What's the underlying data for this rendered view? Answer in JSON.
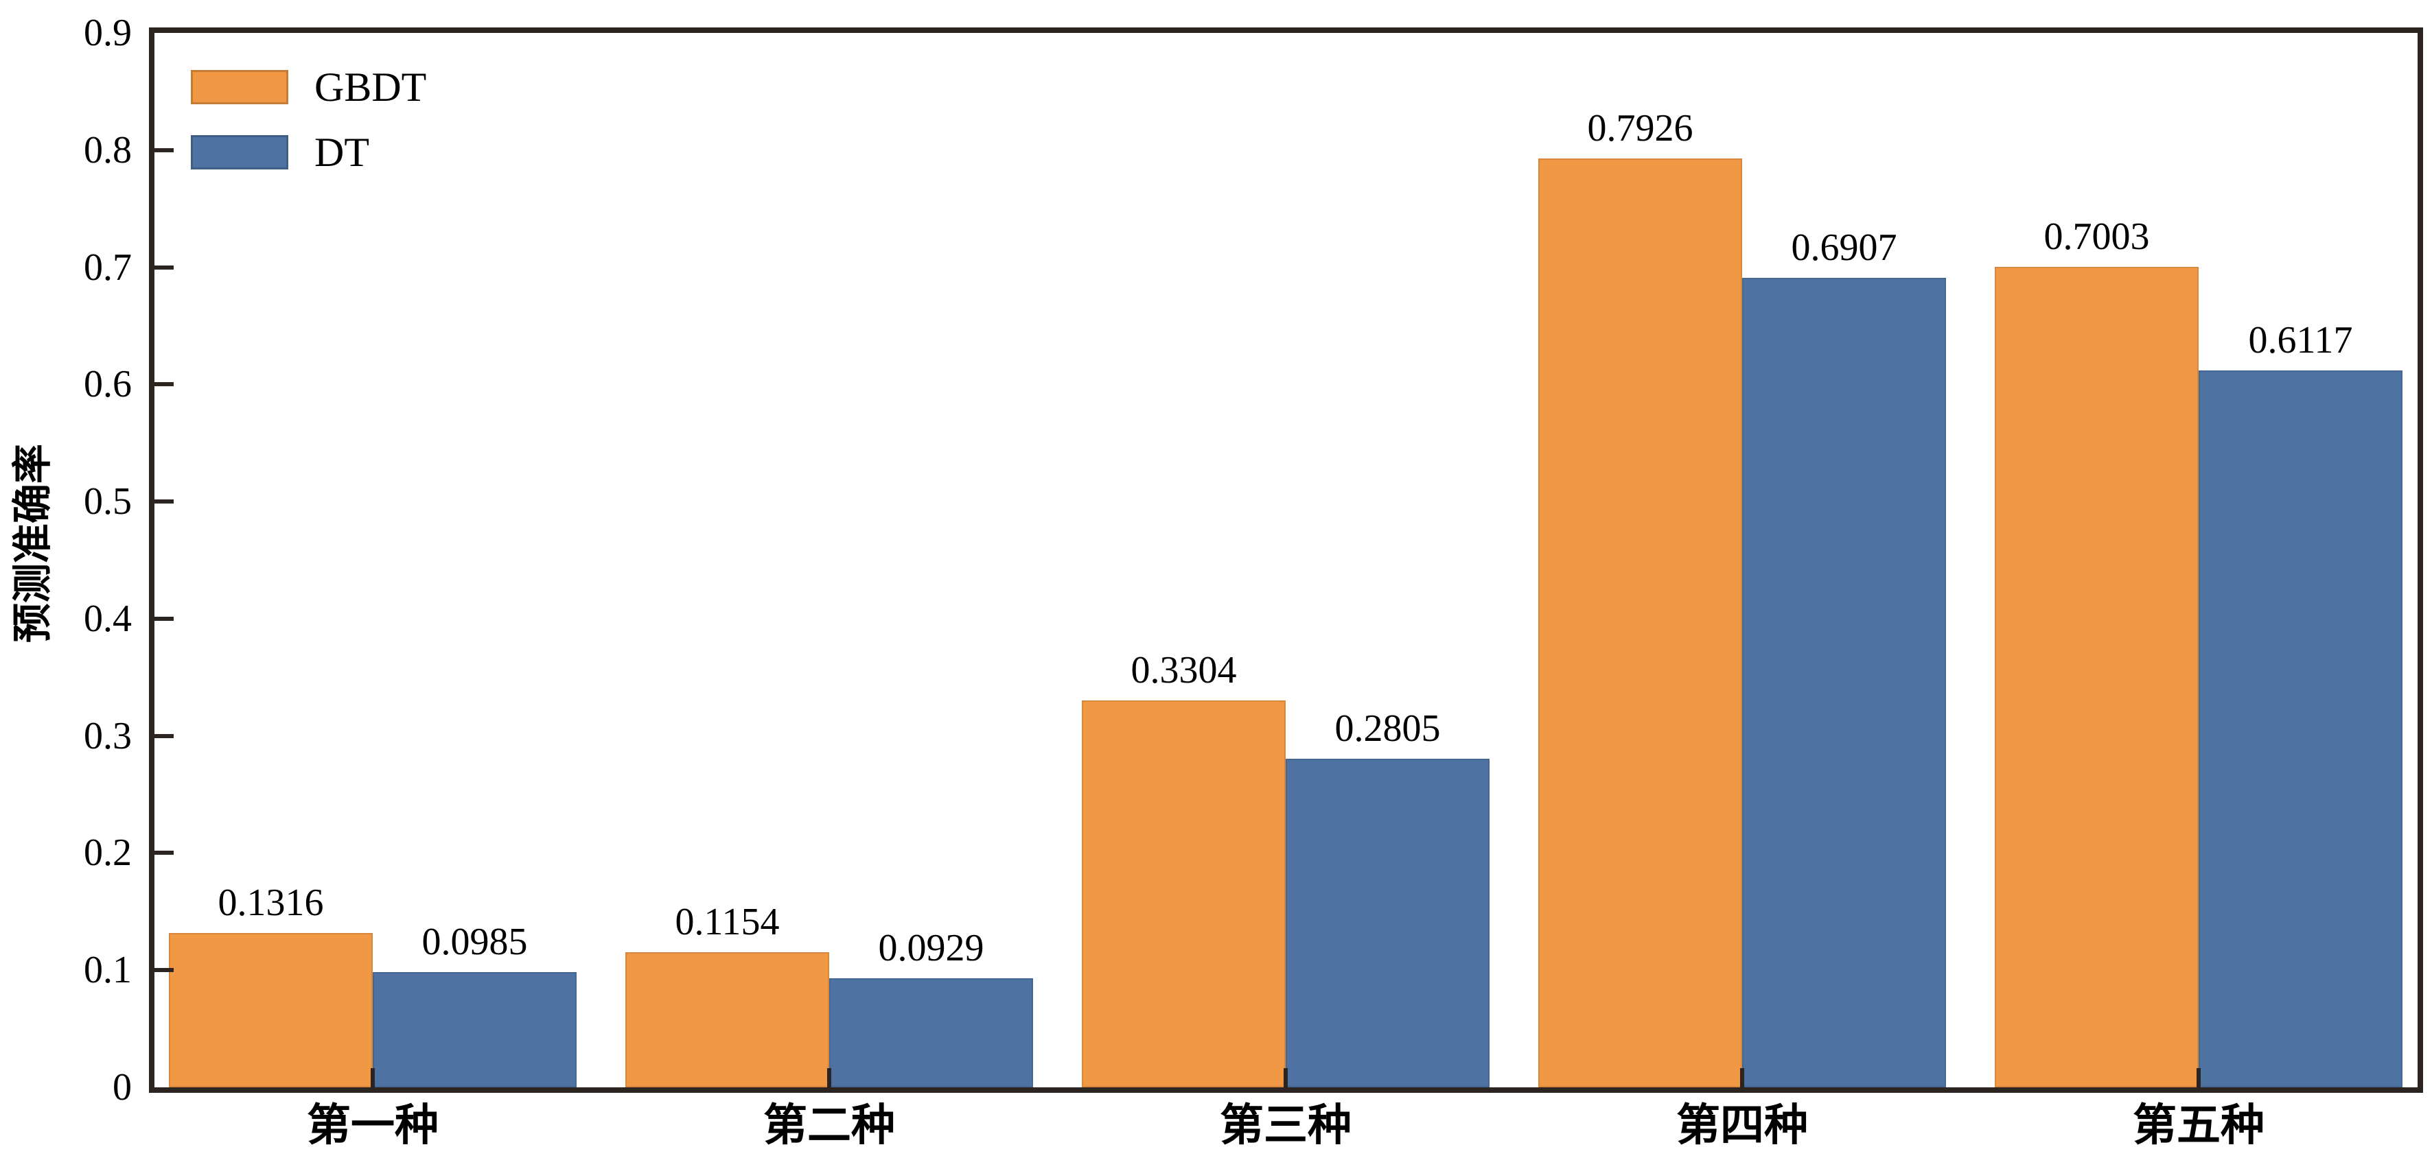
{
  "chart_data": {
    "type": "bar",
    "title": "",
    "xlabel": "",
    "ylabel": "预测准确率",
    "categories": [
      "第一种",
      "第二种",
      "第三种",
      "第四种",
      "第五种"
    ],
    "series": [
      {
        "name": "GBDT",
        "color": "#F09843",
        "values": [
          0.1316,
          0.1154,
          0.3304,
          0.7926,
          0.7003
        ]
      },
      {
        "name": "DT",
        "color": "#4E73A3",
        "values": [
          0.0985,
          0.0929,
          0.2805,
          0.6907,
          0.6117
        ]
      }
    ],
    "ylim": [
      0,
      0.9
    ],
    "y_ticks": [
      0,
      0.1,
      0.2,
      0.3,
      0.4,
      0.5,
      0.6,
      0.7,
      0.8,
      0.9
    ],
    "y_tick_labels": [
      "0",
      "0.1",
      "0.2",
      "0.3",
      "0.4",
      "0.5",
      "0.6",
      "0.7",
      "0.8",
      "0.9"
    ],
    "bar_value_labels": true,
    "legend_position": "upper-left",
    "grid": false
  },
  "colors": {
    "axis": "#2B2420",
    "text": "#000000",
    "background": "#FFFFFF"
  }
}
